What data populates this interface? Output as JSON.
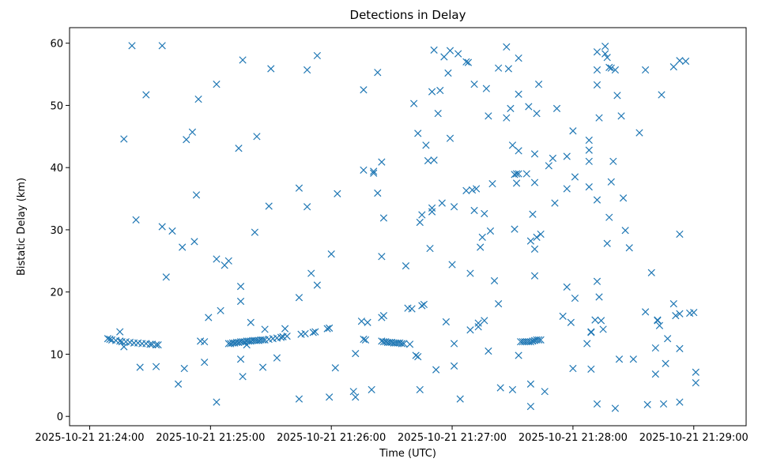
{
  "chart_data": {
    "type": "scatter",
    "title": "Detections in Delay",
    "xlabel": "Time (UTC)",
    "ylabel": "Bistatic Delay (km)",
    "marker": "x",
    "color": "#1f77b4",
    "grid": false,
    "xlim": [
      "2025-10-21 21:23:50",
      "2025-10-21 21:29:26"
    ],
    "ylim": [
      -1.5,
      62.5
    ],
    "x_ticks": [
      "2025-10-21 21:24:00",
      "2025-10-21 21:25:00",
      "2025-10-21 21:26:00",
      "2025-10-21 21:27:00",
      "2025-10-21 21:28:00",
      "2025-10-21 21:29:00"
    ],
    "y_ticks": [
      "0",
      "10",
      "20",
      "30",
      "40",
      "50",
      "60"
    ],
    "points": [
      [
        "21:24:09",
        12.5
      ],
      [
        "21:24:10",
        12.4
      ],
      [
        "21:24:11",
        12.3
      ],
      [
        "21:24:13",
        12.2
      ],
      [
        "21:24:15",
        12.1
      ],
      [
        "21:24:16",
        12.0
      ],
      [
        "21:24:18",
        12.0
      ],
      [
        "21:24:20",
        11.9
      ],
      [
        "21:24:22",
        11.8
      ],
      [
        "21:24:24",
        11.8
      ],
      [
        "21:24:26",
        11.7
      ],
      [
        "21:24:28",
        11.7
      ],
      [
        "21:24:30",
        11.6
      ],
      [
        "21:24:31",
        11.6
      ],
      [
        "21:24:33",
        11.5
      ],
      [
        "21:24:34",
        11.5
      ],
      [
        "21:24:15",
        13.6
      ],
      [
        "21:24:17",
        11.2
      ],
      [
        "21:24:17",
        44.6
      ],
      [
        "21:24:21",
        59.6
      ],
      [
        "21:24:23",
        31.6
      ],
      [
        "21:24:25",
        7.9
      ],
      [
        "21:24:28",
        51.7
      ],
      [
        "21:24:33",
        8.0
      ],
      [
        "21:24:36",
        59.6
      ],
      [
        "21:24:36",
        30.5
      ],
      [
        "21:24:38",
        22.4
      ],
      [
        "21:24:41",
        29.8
      ],
      [
        "21:24:44",
        5.2
      ],
      [
        "21:24:46",
        27.2
      ],
      [
        "21:24:47",
        7.7
      ],
      [
        "21:24:48",
        44.5
      ],
      [
        "21:24:51",
        45.7
      ],
      [
        "21:24:52",
        28.1
      ],
      [
        "21:24:53",
        35.6
      ],
      [
        "21:24:54",
        51.0
      ],
      [
        "21:24:55",
        12.1
      ],
      [
        "21:24:57",
        8.7
      ],
      [
        "21:24:57",
        12.0
      ],
      [
        "21:24:59",
        15.9
      ],
      [
        "21:25:03",
        2.3
      ],
      [
        "21:25:03",
        53.4
      ],
      [
        "21:25:03",
        25.3
      ],
      [
        "21:25:05",
        17.0
      ],
      [
        "21:25:07",
        24.3
      ],
      [
        "21:25:09",
        25.0
      ],
      [
        "21:25:09",
        11.7
      ],
      [
        "21:25:10",
        11.7
      ],
      [
        "21:25:11",
        11.8
      ],
      [
        "21:25:12",
        11.8
      ],
      [
        "21:25:13",
        11.9
      ],
      [
        "21:25:14",
        11.9
      ],
      [
        "21:25:15",
        12.0
      ],
      [
        "21:25:16",
        12.0
      ],
      [
        "21:25:17",
        12.0
      ],
      [
        "21:25:18",
        12.1
      ],
      [
        "21:25:19",
        12.1
      ],
      [
        "21:25:20",
        12.1
      ],
      [
        "21:25:21",
        12.2
      ],
      [
        "21:25:22",
        12.2
      ],
      [
        "21:25:23",
        12.2
      ],
      [
        "21:25:24",
        12.2
      ],
      [
        "21:25:25",
        12.3
      ],
      [
        "21:25:26",
        12.3
      ],
      [
        "21:25:27",
        12.3
      ],
      [
        "21:25:29",
        12.4
      ],
      [
        "21:25:31",
        12.5
      ],
      [
        "21:25:33",
        12.6
      ],
      [
        "21:25:35",
        12.7
      ],
      [
        "21:25:36",
        12.8
      ],
      [
        "21:25:38",
        12.9
      ],
      [
        "21:25:14",
        43.1
      ],
      [
        "21:25:15",
        9.2
      ],
      [
        "21:25:15",
        20.9
      ],
      [
        "21:25:15",
        18.5
      ],
      [
        "21:25:16",
        6.4
      ],
      [
        "21:25:16",
        57.3
      ],
      [
        "21:25:18",
        11.5
      ],
      [
        "21:25:20",
        15.1
      ],
      [
        "21:25:22",
        29.6
      ],
      [
        "21:25:23",
        45.0
      ],
      [
        "21:25:26",
        7.9
      ],
      [
        "21:25:27",
        14.0
      ],
      [
        "21:25:29",
        33.8
      ],
      [
        "21:25:30",
        55.9
      ],
      [
        "21:25:33",
        9.4
      ],
      [
        "21:25:37",
        14.1
      ],
      [
        "21:25:44",
        2.8
      ],
      [
        "21:25:44",
        19.1
      ],
      [
        "21:25:44",
        36.7
      ],
      [
        "21:25:45",
        13.2
      ],
      [
        "21:25:47",
        13.3
      ],
      [
        "21:25:48",
        55.7
      ],
      [
        "21:25:48",
        33.7
      ],
      [
        "21:25:50",
        23.0
      ],
      [
        "21:25:51",
        13.5
      ],
      [
        "21:25:52",
        13.6
      ],
      [
        "21:25:53",
        21.1
      ],
      [
        "21:25:53",
        58.0
      ],
      [
        "21:25:58",
        14.1
      ],
      [
        "21:25:59",
        3.1
      ],
      [
        "21:25:59",
        14.2
      ],
      [
        "21:26:00",
        26.1
      ],
      [
        "21:26:02",
        7.8
      ],
      [
        "21:26:03",
        35.8
      ],
      [
        "21:26:11",
        4.0
      ],
      [
        "21:26:12",
        10.1
      ],
      [
        "21:26:12",
        3.1
      ],
      [
        "21:26:15",
        15.3
      ],
      [
        "21:26:16",
        12.4
      ],
      [
        "21:26:16",
        52.5
      ],
      [
        "21:26:16",
        39.6
      ],
      [
        "21:26:17",
        12.3
      ],
      [
        "21:26:18",
        15.1
      ],
      [
        "21:26:20",
        4.3
      ],
      [
        "21:26:21",
        39.4
      ],
      [
        "21:26:21",
        39.1
      ],
      [
        "21:26:23",
        55.3
      ],
      [
        "21:26:23",
        35.9
      ],
      [
        "21:26:25",
        15.9
      ],
      [
        "21:26:25",
        25.7
      ],
      [
        "21:26:25",
        40.9
      ],
      [
        "21:26:26",
        31.9
      ],
      [
        "21:26:26",
        16.2
      ],
      [
        "21:26:25",
        12.1
      ],
      [
        "21:26:26",
        12.0
      ],
      [
        "21:26:27",
        12.0
      ],
      [
        "21:26:28",
        11.9
      ],
      [
        "21:26:29",
        11.9
      ],
      [
        "21:26:30",
        11.9
      ],
      [
        "21:26:31",
        11.8
      ],
      [
        "21:26:32",
        11.8
      ],
      [
        "21:26:33",
        11.8
      ],
      [
        "21:26:34",
        11.8
      ],
      [
        "21:26:35",
        11.7
      ],
      [
        "21:26:36",
        11.7
      ],
      [
        "21:26:37",
        24.2
      ],
      [
        "21:26:38",
        17.4
      ],
      [
        "21:26:39",
        11.6
      ],
      [
        "21:26:40",
        17.3
      ],
      [
        "21:26:41",
        50.3
      ],
      [
        "21:26:42",
        9.8
      ],
      [
        "21:26:43",
        45.5
      ],
      [
        "21:26:43",
        9.6
      ],
      [
        "21:26:44",
        4.3
      ],
      [
        "21:26:44",
        31.2
      ],
      [
        "21:26:45",
        17.8
      ],
      [
        "21:26:45",
        32.4
      ],
      [
        "21:26:46",
        18.0
      ],
      [
        "21:26:47",
        43.6
      ],
      [
        "21:26:48",
        41.1
      ],
      [
        "21:26:49",
        27.0
      ],
      [
        "21:26:50",
        33.5
      ],
      [
        "21:26:50",
        52.2
      ],
      [
        "21:26:50",
        32.9
      ],
      [
        "21:26:51",
        41.2
      ],
      [
        "21:26:51",
        58.9
      ],
      [
        "21:26:52",
        7.5
      ],
      [
        "21:26:53",
        48.7
      ],
      [
        "21:26:54",
        52.4
      ],
      [
        "21:26:55",
        34.3
      ],
      [
        "21:26:56",
        57.8
      ],
      [
        "21:26:57",
        15.2
      ],
      [
        "21:26:58",
        55.2
      ],
      [
        "21:26:59",
        44.7
      ],
      [
        "21:26:59",
        58.8
      ],
      [
        "21:27:00",
        24.4
      ],
      [
        "21:27:01",
        8.1
      ],
      [
        "21:27:01",
        11.7
      ],
      [
        "21:27:01",
        33.7
      ],
      [
        "21:27:03",
        58.3
      ],
      [
        "21:27:04",
        2.8
      ],
      [
        "21:27:07",
        57.0
      ],
      [
        "21:27:07",
        36.3
      ],
      [
        "21:27:08",
        56.9
      ],
      [
        "21:27:09",
        23.0
      ],
      [
        "21:27:09",
        13.9
      ],
      [
        "21:27:10",
        36.4
      ],
      [
        "21:27:11",
        53.4
      ],
      [
        "21:27:11",
        33.1
      ],
      [
        "21:27:12",
        36.6
      ],
      [
        "21:27:13",
        15.0
      ],
      [
        "21:27:13",
        14.4
      ],
      [
        "21:27:14",
        27.2
      ],
      [
        "21:27:15",
        28.8
      ],
      [
        "21:27:16",
        32.6
      ],
      [
        "21:27:16",
        15.4
      ],
      [
        "21:27:17",
        52.7
      ],
      [
        "21:27:18",
        10.5
      ],
      [
        "21:27:18",
        48.3
      ],
      [
        "21:27:19",
        29.8
      ],
      [
        "21:27:20",
        37.4
      ],
      [
        "21:27:21",
        21.8
      ],
      [
        "21:27:23",
        56.0
      ],
      [
        "21:27:23",
        18.1
      ],
      [
        "21:27:24",
        4.6
      ],
      [
        "21:27:27",
        59.4
      ],
      [
        "21:27:27",
        48.0
      ],
      [
        "21:27:28",
        55.9
      ],
      [
        "21:27:29",
        49.5
      ],
      [
        "21:27:30",
        43.6
      ],
      [
        "21:27:30",
        4.3
      ],
      [
        "21:27:31",
        30.1
      ],
      [
        "21:27:31",
        38.9
      ],
      [
        "21:27:32",
        37.5
      ],
      [
        "21:27:32",
        39.0
      ],
      [
        "21:27:33",
        51.8
      ],
      [
        "21:27:33",
        57.6
      ],
      [
        "21:27:33",
        42.7
      ],
      [
        "21:27:33",
        39.0
      ],
      [
        "21:27:33",
        9.8
      ],
      [
        "21:27:34",
        12.0
      ],
      [
        "21:27:35",
        12.0
      ],
      [
        "21:27:36",
        12.0
      ],
      [
        "21:27:37",
        12.0
      ],
      [
        "21:27:38",
        12.0
      ],
      [
        "21:27:39",
        12.0
      ],
      [
        "21:27:40",
        12.1
      ],
      [
        "21:27:41",
        12.2
      ],
      [
        "21:27:42",
        12.3
      ],
      [
        "21:27:43",
        12.3
      ],
      [
        "21:27:44",
        12.3
      ],
      [
        "21:27:37",
        39.0
      ],
      [
        "21:27:38",
        49.8
      ],
      [
        "21:27:39",
        5.2
      ],
      [
        "21:27:39",
        28.2
      ],
      [
        "21:27:39",
        1.6
      ],
      [
        "21:27:40",
        32.5
      ],
      [
        "21:27:41",
        42.2
      ],
      [
        "21:27:41",
        37.6
      ],
      [
        "21:27:41",
        26.9
      ],
      [
        "21:27:41",
        22.6
      ],
      [
        "21:27:42",
        48.7
      ],
      [
        "21:27:42",
        28.8
      ],
      [
        "21:27:43",
        53.4
      ],
      [
        "21:27:44",
        29.3
      ],
      [
        "21:27:46",
        4.0
      ],
      [
        "21:27:48",
        40.3
      ],
      [
        "21:27:50",
        41.5
      ],
      [
        "21:27:51",
        34.3
      ],
      [
        "21:27:52",
        49.5
      ],
      [
        "21:27:55",
        16.1
      ],
      [
        "21:27:57",
        20.8
      ],
      [
        "21:27:57",
        41.8
      ],
      [
        "21:27:57",
        36.6
      ],
      [
        "21:27:59",
        15.1
      ],
      [
        "21:28:00",
        7.7
      ],
      [
        "21:28:00",
        45.9
      ],
      [
        "21:28:01",
        19.0
      ],
      [
        "21:28:01",
        38.5
      ],
      [
        "21:28:07",
        11.7
      ],
      [
        "21:28:08",
        44.4
      ],
      [
        "21:28:08",
        41.0
      ],
      [
        "21:28:08",
        42.8
      ],
      [
        "21:28:08",
        36.9
      ],
      [
        "21:28:09",
        7.6
      ],
      [
        "21:28:09",
        13.6
      ],
      [
        "21:28:09",
        13.5
      ],
      [
        "21:28:11",
        15.5
      ],
      [
        "21:28:12",
        58.6
      ],
      [
        "21:28:12",
        55.7
      ],
      [
        "21:28:12",
        53.3
      ],
      [
        "21:28:12",
        34.8
      ],
      [
        "21:28:12",
        21.7
      ],
      [
        "21:28:12",
        2.0
      ],
      [
        "21:28:13",
        48.0
      ],
      [
        "21:28:13",
        19.2
      ],
      [
        "21:28:14",
        15.4
      ],
      [
        "21:28:15",
        14.0
      ],
      [
        "21:28:16",
        58.3
      ],
      [
        "21:28:16",
        59.5
      ],
      [
        "21:28:17",
        57.7
      ],
      [
        "21:28:17",
        27.8
      ],
      [
        "21:28:18",
        32.0
      ],
      [
        "21:28:18",
        56.1
      ],
      [
        "21:28:19",
        56.0
      ],
      [
        "21:28:19",
        37.7
      ],
      [
        "21:28:20",
        41.0
      ],
      [
        "21:28:21",
        55.7
      ],
      [
        "21:28:21",
        1.3
      ],
      [
        "21:28:22",
        51.6
      ],
      [
        "21:28:23",
        9.2
      ],
      [
        "21:28:24",
        48.3
      ],
      [
        "21:28:25",
        35.1
      ],
      [
        "21:28:26",
        29.9
      ],
      [
        "21:28:28",
        27.1
      ],
      [
        "21:28:30",
        9.2
      ],
      [
        "21:28:33",
        45.6
      ],
      [
        "21:28:36",
        55.7
      ],
      [
        "21:28:36",
        16.8
      ],
      [
        "21:28:37",
        1.9
      ],
      [
        "21:28:39",
        23.1
      ],
      [
        "21:28:41",
        6.8
      ],
      [
        "21:28:41",
        11.0
      ],
      [
        "21:28:42",
        15.5
      ],
      [
        "21:28:42",
        15.4
      ],
      [
        "21:28:43",
        14.6
      ],
      [
        "21:28:44",
        51.7
      ],
      [
        "21:28:45",
        2.0
      ],
      [
        "21:28:46",
        8.5
      ],
      [
        "21:28:47",
        12.5
      ],
      [
        "21:28:50",
        18.1
      ],
      [
        "21:28:50",
        56.2
      ],
      [
        "21:28:51",
        16.2
      ],
      [
        "21:28:53",
        16.5
      ],
      [
        "21:28:53",
        29.3
      ],
      [
        "21:28:53",
        57.2
      ],
      [
        "21:28:53",
        10.9
      ],
      [
        "21:28:53",
        2.3
      ],
      [
        "21:28:56",
        57.1
      ],
      [
        "21:28:58",
        16.6
      ],
      [
        "21:29:00",
        16.7
      ],
      [
        "21:29:01",
        7.1
      ],
      [
        "21:29:01",
        5.4
      ]
    ]
  }
}
